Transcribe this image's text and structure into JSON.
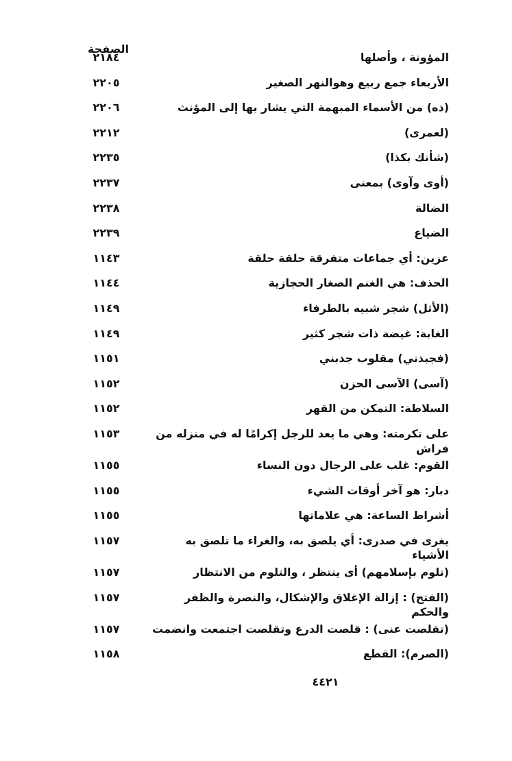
{
  "header": {
    "page_column_label": "الصفحة"
  },
  "entries": [
    {
      "text": "المؤونة ، وأصلها",
      "page": "٢١٨٤"
    },
    {
      "text": "الأربعاء جمع ربيع وهوالنهر الصغير",
      "page": "٢٢٠٥"
    },
    {
      "text": "(ذه) من الأسماء المبهمة التي يشار بها إلى المؤنث",
      "page": "٢٢٠٦"
    },
    {
      "text": "(لعمرى)",
      "page": "٢٢١٢"
    },
    {
      "text": "(شأنك بكذا)",
      "page": "٢٢٣٥"
    },
    {
      "text": "(أوى وآوى) بمعنى",
      "page": "٢٢٣٧"
    },
    {
      "text": "الضالة",
      "page": "٢٢٣٨"
    },
    {
      "text": "الضياع",
      "page": "٢٢٣٩"
    },
    {
      "text": "عزين: أي جماعات متفرقة حلقة حلقة",
      "page": "١١٤٣"
    },
    {
      "text": "الحذف: هي الغنم الصغار الحجازية",
      "page": "١١٤٤"
    },
    {
      "text": "(الأثل) شجر شبيه بالطرفاء",
      "page": "١١٤٩"
    },
    {
      "text": "الغابة: غيضة ذات شجر كثير",
      "page": "١١٤٩"
    },
    {
      "text": "(فجبذني) مقلوب جذبني",
      "page": "١١٥١"
    },
    {
      "text": "(آسى) الآسى الحزن",
      "page": "١١٥٢"
    },
    {
      "text": "السلاطة: التمكن من القهر",
      "page": "١١٥٢"
    },
    {
      "text": "على تكرمته: وهي ما يعد للرجل إكرامًا له في منزله من فراش",
      "page": "١١٥٣"
    },
    {
      "text": "القوم: غلب على الرجال دون النساء",
      "page": "١١٥٥"
    },
    {
      "text": "دبار: هو آخر أوقات الشيء",
      "page": "١١٥٥"
    },
    {
      "text": "أشراط الساعة: هي علاماتها",
      "page": "١١٥٥"
    },
    {
      "text": "يغرى في صدرى: أي يلصق به، والغراء ما تلصق به الأشياء",
      "page": "١١٥٧"
    },
    {
      "text": "(تلوم بإسلامهم) أى ينتظر ، والتلوم من الانتظار",
      "page": "١١٥٧"
    },
    {
      "text": "(الفتح) : إزالة الإغلاق والإشكال، والنصرة والظفر والحكم",
      "page": "١١٥٧"
    },
    {
      "text": "(تقلصت عنى) : قلصت الدرع وتقلصت اجتمعت وانضمت",
      "page": "١١٥٧"
    },
    {
      "text": "(الصرم): القطع",
      "page": "١١٥٨"
    }
  ],
  "footer": {
    "page_number": "٤٤٢١"
  }
}
